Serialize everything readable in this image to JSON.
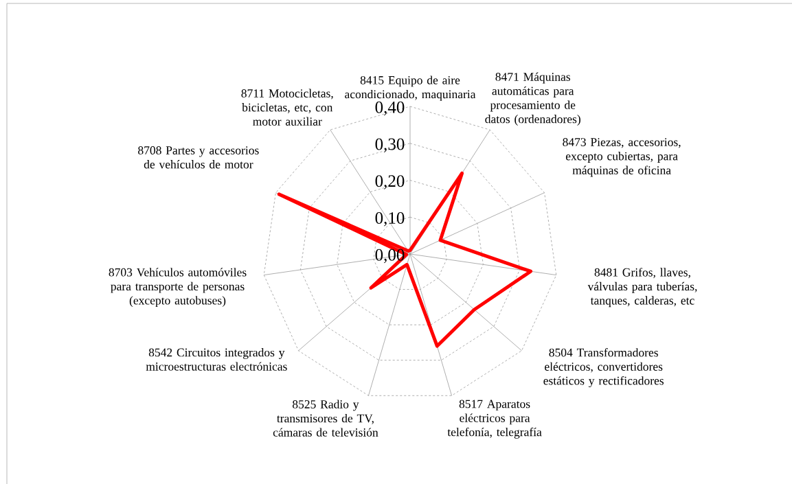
{
  "chart_data": {
    "type": "radar",
    "categories": [
      "8415 Equipo de aire acondicionado, maquinaria",
      "8471 Máquinas automáticas para procesamiento de datos (ordenadores)",
      "8473 Piezas, accesorios, excepto cubiertas, para máquinas de oficina",
      "8481 Grifos, llaves, válvulas para tuberías, tanques, calderas, etc",
      "8504 Transformadores eléctricos, convertidores estáticos y rectificadores",
      "8517 Aparatos eléctricos para telefonía, telegrafía",
      "8525 Radio y  transmisores de TV, cámaras de televisión",
      "8542 Circuitos integrados y microestructuras electrónicas",
      "8703 Vehículos automóviles para transporte de personas (excepto autobuses)",
      "8708 Partes y accesorios de vehículos de motor",
      "8711 Motocicletas, bicicletas, etc, con motor auxiliar"
    ],
    "series": [
      {
        "color": "#ff0000",
        "values": [
          0.01,
          0.26,
          0.09,
          0.33,
          0.23,
          0.26,
          0.03,
          0.14,
          0.01,
          0.39,
          0.01
        ]
      }
    ],
    "ylim": [
      0,
      0.4
    ],
    "yticks": [
      {
        "value": 0,
        "label": "0,00"
      },
      {
        "value": 0.1,
        "label": "0,10"
      },
      {
        "value": 0.2,
        "label": "0,20"
      },
      {
        "value": 0.3,
        "label": "0,30"
      },
      {
        "value": 0.4,
        "label": "0,40"
      }
    ],
    "grid": true
  }
}
